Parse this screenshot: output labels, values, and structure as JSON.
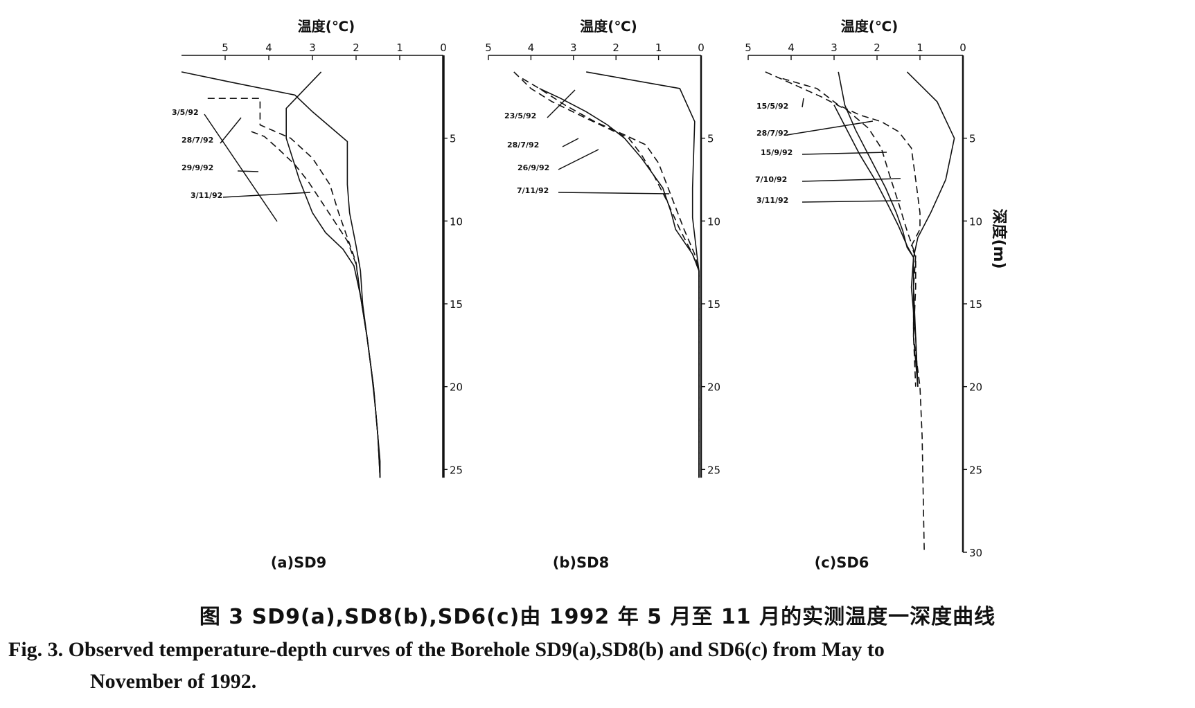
{
  "chart_data": [
    {
      "type": "line",
      "panel_label": "(a)SD9",
      "xlabel": "温度(℃)",
      "ylabel": "",
      "x_ticks": [
        5,
        4,
        3,
        2,
        1,
        0
      ],
      "y_ticks": [
        5,
        10,
        15,
        20,
        25
      ],
      "xlim": [
        6,
        0
      ],
      "ylim": [
        0,
        30
      ],
      "series": [
        {
          "name": "3/5/92",
          "style": "solid",
          "points": [
            [
              6.0,
              1.0
            ],
            [
              4.9,
              1.6
            ],
            [
              3.4,
              2.4
            ],
            [
              3.0,
              3.4
            ],
            [
              2.2,
              5.2
            ],
            [
              2.2,
              6.5
            ],
            [
              2.2,
              7.8
            ],
            [
              2.15,
              9.5
            ],
            [
              2.0,
              11.5
            ],
            [
              1.9,
              13.0
            ],
            [
              1.85,
              15.0
            ],
            [
              1.75,
              17.0
            ],
            [
              1.65,
              19.0
            ],
            [
              1.55,
              21.5
            ],
            [
              1.45,
              24.5
            ],
            [
              1.45,
              25.5
            ]
          ]
        },
        {
          "name": "28/7/92",
          "style": "dashed",
          "points": [
            [
              5.4,
              2.6
            ],
            [
              4.2,
              2.6
            ],
            [
              4.2,
              4.2
            ],
            [
              3.5,
              5.0
            ],
            [
              3.0,
              6.2
            ],
            [
              2.6,
              7.8
            ],
            [
              2.4,
              9.5
            ],
            [
              2.2,
              11.0
            ],
            [
              2.0,
              12.5
            ],
            [
              1.9,
              14.5
            ],
            [
              1.75,
              17.0
            ],
            [
              1.6,
              20.0
            ],
            [
              1.5,
              23.0
            ],
            [
              1.45,
              25.5
            ]
          ]
        },
        {
          "name": "29/9/92",
          "style": "dashed",
          "points": [
            [
              4.4,
              4.6
            ],
            [
              4.1,
              4.9
            ],
            [
              3.8,
              5.6
            ],
            [
              3.4,
              6.6
            ],
            [
              3.1,
              7.6
            ],
            [
              2.8,
              8.8
            ],
            [
              2.5,
              10.0
            ],
            [
              2.2,
              11.2
            ],
            [
              2.0,
              12.6
            ],
            [
              1.9,
              14.5
            ],
            [
              1.75,
              17.0
            ],
            [
              1.6,
              20.0
            ],
            [
              1.5,
              23.0
            ],
            [
              1.45,
              25.5
            ]
          ]
        },
        {
          "name": "3/11/92",
          "style": "solid",
          "points": [
            [
              2.8,
              1.0
            ],
            [
              3.6,
              3.2
            ],
            [
              3.6,
              5.0
            ],
            [
              3.3,
              7.5
            ],
            [
              3.0,
              9.5
            ],
            [
              2.7,
              10.7
            ],
            [
              2.3,
              11.7
            ],
            [
              2.05,
              12.7
            ],
            [
              1.9,
              14.5
            ],
            [
              1.75,
              17.0
            ],
            [
              1.6,
              20.0
            ],
            [
              1.5,
              23.0
            ],
            [
              1.45,
              25.5
            ]
          ]
        }
      ],
      "annotations": [
        "3/5/92",
        "28/7/92",
        "29/9/92",
        "3/11/92"
      ]
    },
    {
      "type": "line",
      "panel_label": "(b)SD8",
      "xlabel": "温度(℃)",
      "ylabel": "",
      "x_ticks": [
        5,
        4,
        3,
        2,
        1,
        0
      ],
      "y_ticks": [
        5,
        10,
        15,
        20,
        25
      ],
      "xlim": [
        5,
        0
      ],
      "ylim": [
        0,
        30
      ],
      "series": [
        {
          "name": "23/5/92",
          "style": "dashed",
          "points": [
            [
              4.4,
              1.0
            ],
            [
              4.0,
              2.0
            ],
            [
              3.5,
              2.8
            ],
            [
              2.7,
              3.8
            ],
            [
              1.7,
              5.0
            ],
            [
              1.4,
              6.0
            ],
            [
              1.1,
              7.3
            ],
            [
              0.8,
              8.8
            ],
            [
              0.5,
              10.5
            ],
            [
              0.2,
              12.0
            ],
            [
              0.05,
              13.0
            ],
            [
              0.05,
              25.5
            ]
          ]
        },
        {
          "name": "28/7/92",
          "style": "dashed",
          "points": [
            [
              4.2,
              1.4
            ],
            [
              3.8,
              2.0
            ],
            [
              3.2,
              3.0
            ],
            [
              2.5,
              4.0
            ],
            [
              1.8,
              4.8
            ],
            [
              1.3,
              5.4
            ],
            [
              1.0,
              6.5
            ],
            [
              0.7,
              8.5
            ],
            [
              0.4,
              10.5
            ],
            [
              0.15,
              12.0
            ],
            [
              0.05,
              13.0
            ],
            [
              0.05,
              25.5
            ]
          ]
        },
        {
          "name": "26/9/92",
          "style": "solid",
          "points": [
            [
              3.8,
              2.0
            ],
            [
              3.3,
              2.6
            ],
            [
              2.7,
              3.4
            ],
            [
              2.2,
              4.2
            ],
            [
              1.8,
              5.0
            ],
            [
              1.4,
              6.2
            ],
            [
              0.9,
              8.0
            ],
            [
              0.7,
              9.5
            ],
            [
              0.6,
              10.5
            ],
            [
              0.2,
              12.0
            ],
            [
              0.05,
              13.0
            ],
            [
              0.05,
              25.5
            ]
          ]
        },
        {
          "name": "7/11/92",
          "style": "solid",
          "points": [
            [
              2.7,
              1.0
            ],
            [
              0.5,
              2.0
            ],
            [
              0.15,
              4.0
            ],
            [
              0.2,
              8.0
            ],
            [
              0.2,
              9.8
            ],
            [
              0.1,
              12.0
            ],
            [
              0.05,
              13.0
            ],
            [
              0.05,
              25.5
            ]
          ]
        }
      ],
      "annotations": [
        "23/5/92",
        "28/7/92",
        "26/9/92",
        "7/11/92"
      ]
    },
    {
      "type": "line",
      "panel_label": "(c)SD6",
      "xlabel": "温度(℃)",
      "ylabel": "深度(m)",
      "x_ticks": [
        5,
        4,
        3,
        2,
        1,
        0
      ],
      "y_ticks": [
        5,
        10,
        15,
        20,
        25,
        30
      ],
      "xlim": [
        5,
        0
      ],
      "ylim": [
        0,
        30
      ],
      "series": [
        {
          "name": "15/5/92",
          "style": "dashed",
          "points": [
            [
              4.6,
              1.0
            ],
            [
              3.9,
              1.8
            ],
            [
              3.3,
              2.5
            ],
            [
              2.7,
              3.3
            ],
            [
              2.2,
              4.4
            ],
            [
              1.9,
              5.6
            ],
            [
              1.7,
              7.3
            ],
            [
              1.5,
              8.9
            ],
            [
              1.3,
              10.6
            ],
            [
              1.1,
              12.1
            ],
            [
              1.15,
              14.0
            ],
            [
              1.15,
              17.0
            ],
            [
              1.0,
              20.0
            ],
            [
              0.95,
              23.0
            ],
            [
              0.9,
              30.0
            ]
          ]
        },
        {
          "name": "28/7/92",
          "style": "dashed",
          "points": [
            [
              4.2,
              1.4
            ],
            [
              3.4,
              2.0
            ],
            [
              2.9,
              3.0
            ],
            [
              2.4,
              3.6
            ],
            [
              1.9,
              4.0
            ],
            [
              1.5,
              4.6
            ],
            [
              1.2,
              5.6
            ],
            [
              1.1,
              7.5
            ],
            [
              1.0,
              9.5
            ],
            [
              1.0,
              10.5
            ],
            [
              1.2,
              11.5
            ],
            [
              1.1,
              12.2
            ],
            [
              1.1,
              14.0
            ],
            [
              1.15,
              17.0
            ],
            [
              1.1,
              20.0
            ]
          ]
        },
        {
          "name": "15/9/92",
          "style": "solid",
          "points": [
            [
              2.9,
              1.0
            ],
            [
              2.75,
              3.0
            ],
            [
              2.5,
              4.5
            ],
            [
              2.1,
              6.5
            ],
            [
              1.8,
              8.0
            ],
            [
              1.55,
              9.5
            ],
            [
              1.4,
              10.6
            ],
            [
              1.3,
              11.6
            ],
            [
              1.15,
              12.2
            ],
            [
              1.15,
              14.0
            ],
            [
              1.15,
              17.0
            ],
            [
              1.05,
              20.0
            ]
          ]
        },
        {
          "name": "7/10/92",
          "style": "solid",
          "points": [
            [
              3.0,
              3.0
            ],
            [
              2.7,
              4.5
            ],
            [
              2.4,
              6.0
            ],
            [
              2.05,
              7.5
            ],
            [
              1.75,
              9.0
            ],
            [
              1.5,
              10.3
            ],
            [
              1.3,
              11.5
            ],
            [
              1.15,
              12.2
            ],
            [
              1.15,
              14.0
            ],
            [
              1.1,
              17.0
            ],
            [
              1.05,
              20.0
            ]
          ]
        },
        {
          "name": "3/11/92",
          "style": "solid",
          "points": [
            [
              1.3,
              1.0
            ],
            [
              0.6,
              2.8
            ],
            [
              0.2,
              5.0
            ],
            [
              0.4,
              7.5
            ],
            [
              0.75,
              9.5
            ],
            [
              1.05,
              11.0
            ],
            [
              1.15,
              12.2
            ],
            [
              1.2,
              14.0
            ],
            [
              1.1,
              17.0
            ],
            [
              1.05,
              20.0
            ]
          ]
        }
      ],
      "annotations": [
        "15/5/92",
        "28/7/92",
        "15/9/92",
        "7/10/92",
        "3/11/92"
      ]
    }
  ],
  "caption": {
    "zh": "图 3   SD9(a),SD8(b),SD6(c)由 1992 年 5 月至 11 月的实测温度一深度曲线",
    "en_line1": "Fig. 3. Observed temperature-depth curves of the Borehole SD9(a),SD8(b) and SD6(c) from May to",
    "en_line2": "November of 1992."
  }
}
